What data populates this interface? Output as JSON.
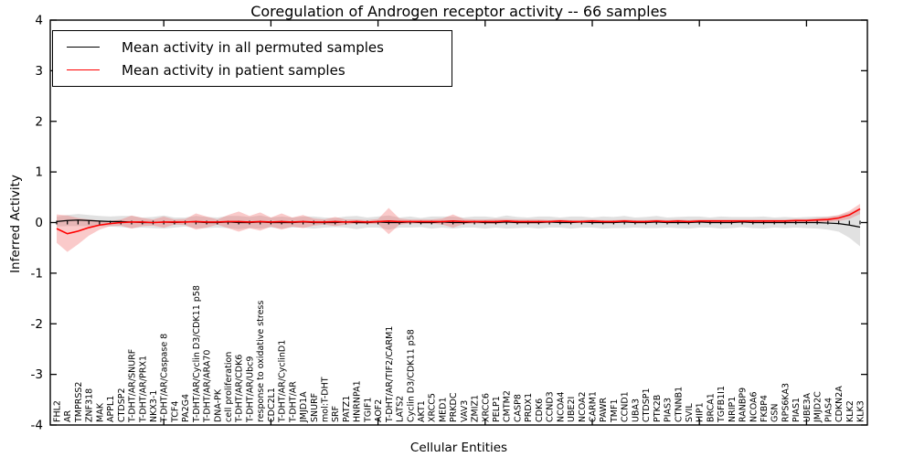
{
  "title": "Coregulation of Androgen receptor activity -- 66 samples",
  "legend": {
    "items": [
      {
        "label": "Mean activity in all permuted samples",
        "color": "#000000"
      },
      {
        "label": "Mean activity in patient samples",
        "color": "#ff0000"
      }
    ]
  },
  "chart_data": {
    "type": "line",
    "title": "Coregulation of Androgen receptor activity -- 66 samples",
    "xlabel": "Cellular Entities",
    "ylabel": "Inferred Activity",
    "ylim": [
      -4,
      4
    ],
    "yticks": [
      "-4",
      "-3",
      "-2",
      "-1",
      "0",
      "1",
      "2",
      "3",
      "4"
    ],
    "grid": false,
    "legend_position": "upper left",
    "zero_marker_line": true,
    "band_alpha": 0.35,
    "categories": [
      "FHL2",
      "AR",
      "TMPRSS2",
      "ZNF318",
      "MAK",
      "APPL1",
      "CTDSP2",
      "T-DHT/AR/SNURF",
      "T-DHT/AR/PRX1",
      "NKX3-1",
      "T-DHT/AR/Caspase 8",
      "TCF4",
      "PA2G4",
      "T-DHT/AR/Cyclin D3/CDK11 p58",
      "T-DHT/AR/ARA70",
      "DNA-PK",
      "cell proliferation",
      "T-DHT/AR/CDK6",
      "T-DHT/AR/Ubc9",
      "response to oxidative stress",
      "CDC2L1",
      "T-DHT/AR/CyclinD1",
      "T-DHT/AR",
      "JMJD1A",
      "SNURF",
      "mol:T-DHT",
      "SRF",
      "PATZ1",
      "HNRNPA1",
      "TGIF1",
      "AOF2",
      "T-DHT/AR/TIF2/CARM1",
      "LATS2",
      "Cyclin D3/CDK11 p58",
      "AKT1",
      "XRCC5",
      "MED1",
      "PRKDC",
      "VAV3",
      "ZMIZ1",
      "XRCC6",
      "PELP1",
      "CMTM2",
      "CASP8",
      "PRDX1",
      "CDK6",
      "CCND3",
      "NCOA4",
      "UBE2I",
      "NCOA2",
      "CARM1",
      "PAWR",
      "TMF1",
      "CCND1",
      "UBA3",
      "CTDSP1",
      "PTK2B",
      "PIAS3",
      "CTNNB1",
      "SVIL",
      "HIP1",
      "BRCA1",
      "TGFB1I1",
      "NRIP1",
      "RANBP9",
      "NCOA6",
      "FKBP4",
      "GSN",
      "RPS6KA3",
      "PIAS1",
      "UBE3A",
      "JMJD2C",
      "PIAS4",
      "CDKN2A",
      "KLK2",
      "KLK3"
    ],
    "series": [
      {
        "name": "Mean activity in all permuted samples",
        "color": "#000000",
        "band_color": "#aaaaaa",
        "values": [
          0.02,
          0.04,
          0.05,
          0.04,
          0.03,
          0.02,
          0.02,
          0.01,
          0.0,
          0.0,
          0.01,
          0.0,
          0.01,
          0.01,
          0.0,
          0.0,
          0.01,
          0.0,
          0.0,
          0.01,
          0.0,
          0.0,
          0.0,
          0.01,
          0.0,
          0.0,
          0.0,
          0.01,
          0.0,
          0.0,
          0.01,
          0.0,
          0.0,
          0.01,
          0.0,
          0.0,
          0.01,
          0.0,
          0.0,
          0.01,
          0.0,
          0.0,
          0.01,
          0.0,
          0.0,
          0.0,
          0.01,
          0.0,
          0.0,
          0.01,
          0.0,
          0.0,
          0.0,
          0.01,
          0.0,
          0.0,
          0.01,
          0.0,
          0.0,
          0.0,
          0.01,
          0.0,
          0.0,
          0.0,
          0.01,
          0.0,
          0.0,
          0.0,
          0.0,
          0.0,
          0.0,
          0.0,
          -0.01,
          -0.02,
          -0.05,
          -0.09
        ],
        "std": [
          0.1,
          0.11,
          0.12,
          0.11,
          0.1,
          0.1,
          0.11,
          0.12,
          0.1,
          0.11,
          0.13,
          0.1,
          0.09,
          0.12,
          0.11,
          0.1,
          0.12,
          0.13,
          0.11,
          0.13,
          0.1,
          0.12,
          0.1,
          0.11,
          0.12,
          0.1,
          0.09,
          0.11,
          0.13,
          0.1,
          0.11,
          0.14,
          0.1,
          0.11,
          0.09,
          0.12,
          0.11,
          0.12,
          0.1,
          0.11,
          0.12,
          0.1,
          0.13,
          0.11,
          0.1,
          0.12,
          0.11,
          0.1,
          0.12,
          0.11,
          0.1,
          0.12,
          0.11,
          0.12,
          0.1,
          0.11,
          0.12,
          0.1,
          0.11,
          0.12,
          0.11,
          0.1,
          0.12,
          0.11,
          0.1,
          0.11,
          0.12,
          0.1,
          0.11,
          0.1,
          0.11,
          0.12,
          0.13,
          0.16,
          0.25,
          0.38
        ]
      },
      {
        "name": "Mean activity in patient samples",
        "color": "#ff0000",
        "band_color": "#f26868",
        "values": [
          -0.12,
          -0.22,
          -0.17,
          -0.1,
          -0.05,
          -0.02,
          0.0,
          0.01,
          0.01,
          0.0,
          0.01,
          0.01,
          0.01,
          0.02,
          0.01,
          0.01,
          0.02,
          0.02,
          0.01,
          0.02,
          0.01,
          0.02,
          0.01,
          0.02,
          0.01,
          0.01,
          0.02,
          0.01,
          0.02,
          0.01,
          0.02,
          0.03,
          0.02,
          0.02,
          0.02,
          0.02,
          0.02,
          0.03,
          0.02,
          0.02,
          0.02,
          0.02,
          0.03,
          0.02,
          0.02,
          0.02,
          0.02,
          0.03,
          0.02,
          0.02,
          0.03,
          0.02,
          0.02,
          0.03,
          0.02,
          0.02,
          0.03,
          0.02,
          0.03,
          0.02,
          0.03,
          0.03,
          0.03,
          0.03,
          0.03,
          0.03,
          0.03,
          0.03,
          0.03,
          0.04,
          0.04,
          0.05,
          0.06,
          0.09,
          0.15,
          0.27
        ],
        "std": [
          0.28,
          0.36,
          0.26,
          0.16,
          0.09,
          0.05,
          0.06,
          0.13,
          0.08,
          0.06,
          0.11,
          0.05,
          0.06,
          0.16,
          0.11,
          0.05,
          0.13,
          0.2,
          0.12,
          0.18,
          0.09,
          0.16,
          0.09,
          0.13,
          0.07,
          0.05,
          0.09,
          0.05,
          0.04,
          0.04,
          0.05,
          0.26,
          0.06,
          0.04,
          0.04,
          0.04,
          0.06,
          0.13,
          0.05,
          0.04,
          0.04,
          0.05,
          0.04,
          0.04,
          0.04,
          0.04,
          0.03,
          0.03,
          0.03,
          0.03,
          0.03,
          0.03,
          0.03,
          0.03,
          0.03,
          0.03,
          0.03,
          0.03,
          0.03,
          0.03,
          0.03,
          0.03,
          0.03,
          0.03,
          0.03,
          0.03,
          0.03,
          0.03,
          0.03,
          0.03,
          0.03,
          0.04,
          0.05,
          0.06,
          0.08,
          0.1
        ]
      }
    ]
  }
}
